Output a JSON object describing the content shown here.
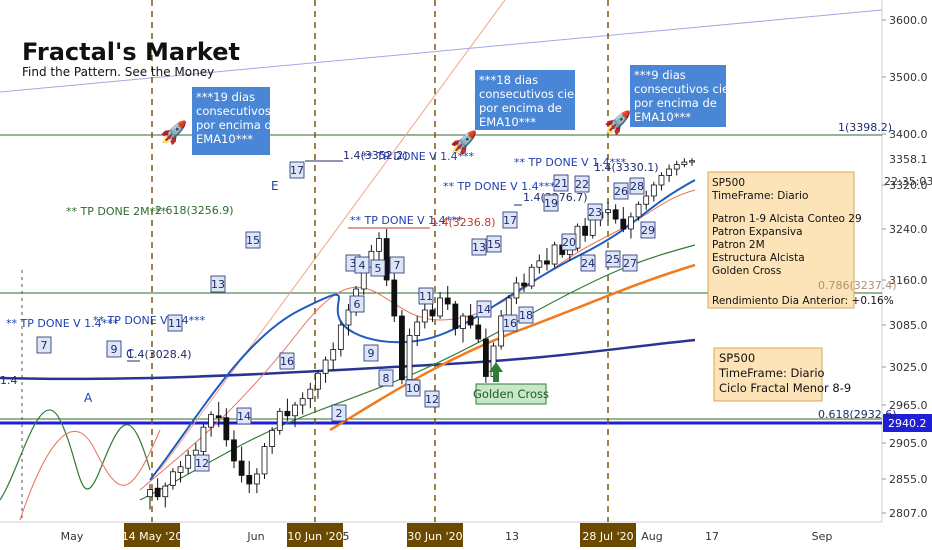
{
  "brand": {
    "title": "Fractal's Market",
    "tagline": "Find the Pattern.  See the Money"
  },
  "colors": {
    "up": "#111111",
    "down": "#ffffff",
    "ema10": "#1e5bbf",
    "ema20": "#e8735c",
    "ema50": "#2e7d32",
    "ema100": "#f07c1e",
    "ema200": "#283593",
    "box_blue": "#4a86d6",
    "box_orange": "#fde3b8",
    "date_box": "#6b4a00"
  },
  "chart_data": {
    "type": "candlestick",
    "symbol": "SP500",
    "timeframe": "Diario",
    "y_axis_ticks": [
      3600.0,
      3500.0,
      3400.0,
      3320.0,
      3240.0,
      3160.0,
      3085.0,
      3025.0,
      2965.0,
      2905.0,
      2855.0,
      2807.0
    ],
    "current_price": "3358.1",
    "current_time": "22:35:03",
    "price_line": "2940.2",
    "x_axis_labels": [
      "May",
      "14 May '20",
      "Jun",
      "10 Jun '20",
      "5",
      "30 Jun '20",
      "13",
      "28 Jul '20",
      "Aug",
      "17",
      "Sep"
    ],
    "highlighted_dates": [
      "14 May '20",
      "10 Jun '20",
      "30 Jun '20",
      "28 Jul '20"
    ],
    "fib_levels": [
      {
        "label": "1(3398.2)"
      },
      {
        "label": "0.786(3237.4)"
      },
      {
        "label": "0.618(2932.6)"
      },
      {
        "label": "2.618(3256.9)"
      },
      {
        "label": "1.4(3352.2)"
      },
      {
        "label": "1.4(3236.8)"
      },
      {
        "label": "1.4(3276.7)"
      },
      {
        "label": "1.4(3330.1)"
      },
      {
        "label": "1.4(3028.4)"
      },
      {
        "label": "1.4"
      }
    ],
    "tp_labels": [
      "** TP DONE 2M***",
      "** TP DONE V 1.4***",
      "** TP DONE V 1.4***",
      "** TP DONE V 1.4***",
      "** TP DONE V 1.4***",
      "** TP DONE V 1.4***",
      "** TP DONE V 1.4***",
      "** TP DONE V 1.4***"
    ],
    "wave_labels": [
      "A",
      "C",
      "E"
    ],
    "counts": [
      "7",
      "9",
      "11",
      "12",
      "13",
      "14",
      "15",
      "16",
      "17",
      "2",
      "3",
      "4",
      "5",
      "6",
      "7",
      "8",
      "9",
      "10",
      "11",
      "12",
      "13",
      "14",
      "15",
      "16",
      "17",
      "18",
      "19",
      "20",
      "21",
      "22",
      "23",
      "24",
      "25",
      "26",
      "27",
      "28",
      "29"
    ],
    "moving_averages": [
      "EMA10",
      "EMA20",
      "EMA50",
      "EMA100",
      "EMA200"
    ],
    "candles": [
      [
        2830,
        2848,
        2812,
        2840
      ],
      [
        2842,
        2856,
        2825,
        2830
      ],
      [
        2830,
        2850,
        2815,
        2845
      ],
      [
        2846,
        2870,
        2840,
        2865
      ],
      [
        2864,
        2880,
        2850,
        2872
      ],
      [
        2870,
        2895,
        2862,
        2888
      ],
      [
        2888,
        2905,
        2870,
        2895
      ],
      [
        2893,
        2935,
        2888,
        2930
      ],
      [
        2930,
        2955,
        2915,
        2950
      ],
      [
        2948,
        2970,
        2930,
        2945
      ],
      [
        2945,
        2960,
        2900,
        2910
      ],
      [
        2910,
        2925,
        2870,
        2880
      ],
      [
        2880,
        2900,
        2850,
        2860
      ],
      [
        2860,
        2880,
        2835,
        2848
      ],
      [
        2848,
        2870,
        2835,
        2862
      ],
      [
        2862,
        2905,
        2855,
        2900
      ],
      [
        2900,
        2930,
        2890,
        2925
      ],
      [
        2925,
        2960,
        2918,
        2955
      ],
      [
        2955,
        2975,
        2940,
        2948
      ],
      [
        2948,
        2970,
        2930,
        2965
      ],
      [
        2965,
        2985,
        2950,
        2975
      ],
      [
        2975,
        3000,
        2960,
        2990
      ],
      [
        2990,
        3020,
        2975,
        3015
      ],
      [
        3015,
        3040,
        3000,
        3035
      ],
      [
        3035,
        3060,
        3020,
        3050
      ],
      [
        3050,
        3090,
        3040,
        3085
      ],
      [
        3085,
        3120,
        3070,
        3110
      ],
      [
        3110,
        3150,
        3100,
        3145
      ],
      [
        3145,
        3190,
        3135,
        3180
      ],
      [
        3180,
        3215,
        3170,
        3205
      ],
      [
        3205,
        3235,
        3190,
        3225
      ],
      [
        3225,
        3240,
        3150,
        3160
      ],
      [
        3160,
        3170,
        3090,
        3100
      ],
      [
        3100,
        3110,
        2998,
        3005
      ],
      [
        3005,
        3080,
        2995,
        3070
      ],
      [
        3070,
        3100,
        3055,
        3090
      ],
      [
        3090,
        3120,
        3080,
        3110
      ],
      [
        3110,
        3130,
        3090,
        3100
      ],
      [
        3100,
        3140,
        3095,
        3130
      ],
      [
        3130,
        3150,
        3110,
        3120
      ],
      [
        3120,
        3125,
        3070,
        3080
      ],
      [
        3080,
        3105,
        3060,
        3100
      ],
      [
        3100,
        3120,
        3080,
        3085
      ],
      [
        3085,
        3110,
        3060,
        3065
      ],
      [
        3065,
        3080,
        3000,
        3010
      ],
      [
        3010,
        3060,
        3005,
        3055
      ],
      [
        3055,
        3110,
        3050,
        3100
      ],
      [
        3100,
        3135,
        3090,
        3130
      ],
      [
        3130,
        3165,
        3120,
        3155
      ],
      [
        3155,
        3170,
        3140,
        3150
      ],
      [
        3150,
        3185,
        3145,
        3180
      ],
      [
        3180,
        3200,
        3170,
        3190
      ],
      [
        3190,
        3210,
        3175,
        3185
      ],
      [
        3185,
        3220,
        3180,
        3215
      ],
      [
        3215,
        3230,
        3195,
        3200
      ],
      [
        3200,
        3215,
        3190,
        3210
      ],
      [
        3210,
        3250,
        3205,
        3245
      ],
      [
        3245,
        3260,
        3220,
        3230
      ],
      [
        3230,
        3265,
        3225,
        3260
      ],
      [
        3260,
        3280,
        3245,
        3270
      ],
      [
        3270,
        3290,
        3255,
        3275
      ],
      [
        3275,
        3285,
        3250,
        3258
      ],
      [
        3258,
        3280,
        3235,
        3240
      ],
      [
        3240,
        3270,
        3225,
        3262
      ],
      [
        3262,
        3290,
        3255,
        3285
      ],
      [
        3285,
        3310,
        3275,
        3300
      ],
      [
        3300,
        3325,
        3290,
        3320
      ],
      [
        3320,
        3340,
        3310,
        3335
      ],
      [
        3335,
        3352,
        3325,
        3345
      ],
      [
        3345,
        3358,
        3335,
        3352
      ],
      [
        3352,
        3362,
        3348,
        3356
      ],
      [
        3356,
        3362,
        3350,
        3358
      ]
    ]
  }
}
